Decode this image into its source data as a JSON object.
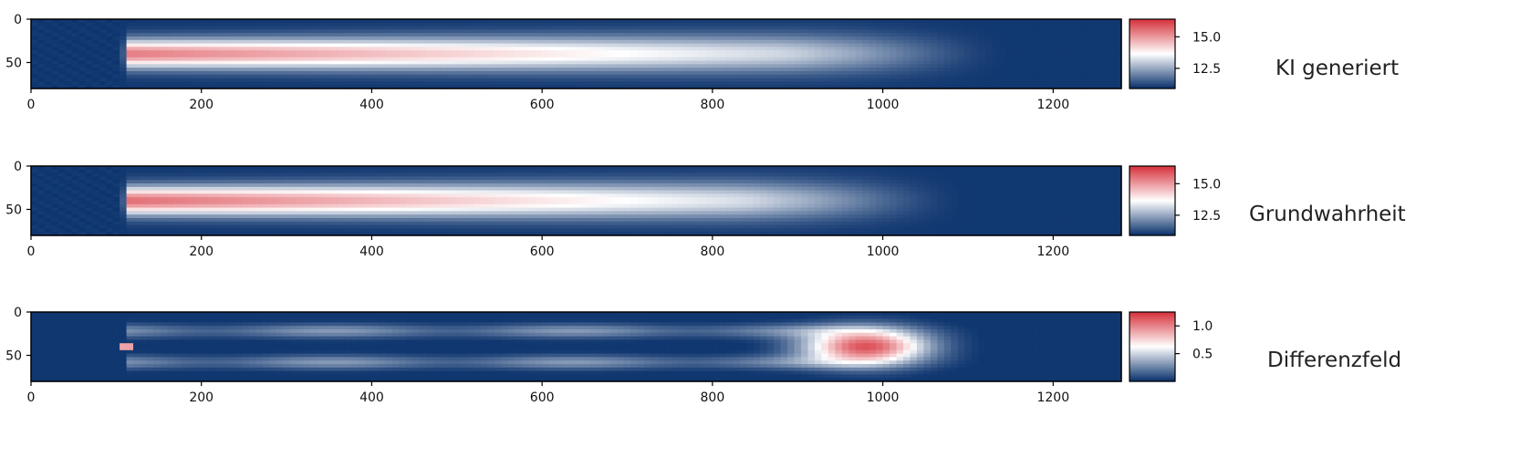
{
  "chart_data": [
    {
      "type": "heatmap",
      "label": "KI generiert",
      "x_ticks": [
        0,
        200,
        400,
        600,
        800,
        1000,
        1200
      ],
      "y_ticks": [
        0,
        50
      ],
      "xlim": [
        0,
        1280
      ],
      "ylim": [
        80,
        0
      ],
      "colorbar": {
        "ticks": [
          12.5,
          15.0
        ],
        "tick_labels": [
          "12.5",
          "15.0"
        ],
        "range": [
          10.9,
          16.4
        ],
        "colormap": "blue-white-red"
      },
      "field": {
        "kind": "plume",
        "background": 11.0,
        "peak": 15.4,
        "start_x": 112,
        "end_x": 930,
        "center_y": 40,
        "half_width_y": 22
      }
    },
    {
      "type": "heatmap",
      "label": "Grundwahrheit",
      "x_ticks": [
        0,
        200,
        400,
        600,
        800,
        1000,
        1200
      ],
      "y_ticks": [
        0,
        50
      ],
      "xlim": [
        0,
        1280
      ],
      "ylim": [
        80,
        0
      ],
      "colorbar": {
        "ticks": [
          12.5,
          15.0
        ],
        "tick_labels": [
          "12.5",
          "15.0"
        ],
        "range": [
          10.9,
          16.4
        ],
        "colormap": "blue-white-red"
      },
      "field": {
        "kind": "plume",
        "background": 11.0,
        "peak": 15.6,
        "start_x": 112,
        "end_x": 880,
        "center_y": 40,
        "half_width_y": 22
      }
    },
    {
      "type": "heatmap",
      "label": "Differenzfeld",
      "x_ticks": [
        0,
        200,
        400,
        600,
        800,
        1000,
        1200
      ],
      "y_ticks": [
        0,
        50
      ],
      "xlim": [
        0,
        1280
      ],
      "ylim": [
        80,
        0
      ],
      "colorbar": {
        "ticks": [
          0.5,
          1.0
        ],
        "tick_labels": [
          "0.5",
          "1.0"
        ],
        "range": [
          0.0,
          1.25
        ],
        "colormap": "blue-white-red"
      },
      "field": {
        "kind": "difference",
        "hotspot_x": 980,
        "hotspot_y": 40,
        "peak": 1.15
      }
    }
  ],
  "colors": {
    "low": "#08306b",
    "mid": "#ffffff",
    "high": "#d6303a"
  }
}
